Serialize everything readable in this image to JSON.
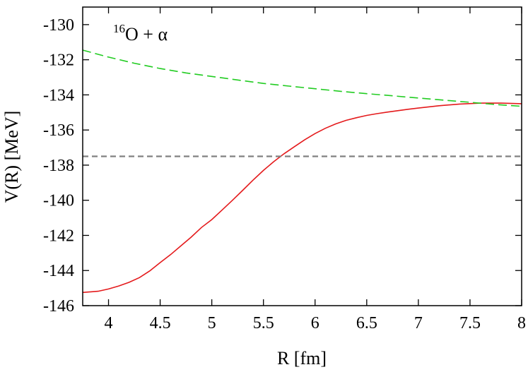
{
  "chart_data": {
    "type": "line",
    "title": "",
    "xlabel": "R [fm]",
    "ylabel": "V(R) [MeV]",
    "xlim": [
      3.75,
      8
    ],
    "ylim": [
      -146,
      -129
    ],
    "x_ticks": [
      4,
      4.5,
      5,
      5.5,
      6,
      6.5,
      7,
      7.5,
      8
    ],
    "x_tick_labels": [
      "4",
      "4.5",
      "5",
      "5.5",
      "6",
      "6.5",
      "7",
      "7.5",
      "8"
    ],
    "y_ticks": [
      -146,
      -144,
      -142,
      -140,
      -138,
      -136,
      -134,
      -132,
      -130
    ],
    "y_tick_labels": [
      "-146",
      "-144",
      "-142",
      "-140",
      "-138",
      "-136",
      "-134",
      "-132",
      "-130"
    ],
    "grid": false,
    "legend": "none",
    "annotation": {
      "mass_number": "16",
      "text": "O + α"
    },
    "series": [
      {
        "color": "#e41a1c",
        "style": "solid",
        "x": [
          3.75,
          3.9,
          4.0,
          4.1,
          4.2,
          4.3,
          4.4,
          4.5,
          4.6,
          4.7,
          4.8,
          4.9,
          5.0,
          5.1,
          5.2,
          5.3,
          5.4,
          5.5,
          5.6,
          5.7,
          5.8,
          5.9,
          6.0,
          6.1,
          6.2,
          6.3,
          6.4,
          6.5,
          6.6,
          6.7,
          6.8,
          6.9,
          7.0,
          7.2,
          7.4,
          7.6,
          7.8,
          8.0
        ],
        "y": [
          -145.25,
          -145.18,
          -145.05,
          -144.88,
          -144.67,
          -144.4,
          -144.02,
          -143.55,
          -143.1,
          -142.6,
          -142.1,
          -141.55,
          -141.1,
          -140.55,
          -140.0,
          -139.43,
          -138.85,
          -138.3,
          -137.8,
          -137.35,
          -136.95,
          -136.55,
          -136.2,
          -135.9,
          -135.65,
          -135.45,
          -135.3,
          -135.17,
          -135.07,
          -134.98,
          -134.9,
          -134.82,
          -134.75,
          -134.62,
          -134.52,
          -134.47,
          -134.47,
          -134.5
        ]
      },
      {
        "color": "#22cc22",
        "style": "dashed",
        "x": [
          3.75,
          4.0,
          4.25,
          4.5,
          4.75,
          5.0,
          5.25,
          5.5,
          5.75,
          6.0,
          6.25,
          6.5,
          6.75,
          7.0,
          7.25,
          7.5,
          7.75,
          8.0
        ],
        "y": [
          -131.45,
          -131.85,
          -132.2,
          -132.5,
          -132.75,
          -132.95,
          -133.15,
          -133.35,
          -133.5,
          -133.65,
          -133.8,
          -133.93,
          -134.05,
          -134.18,
          -134.3,
          -134.42,
          -134.55,
          -134.65
        ]
      },
      {
        "color": "#808080",
        "style": "dashed",
        "x": [
          3.75,
          8.0
        ],
        "y": [
          -137.5,
          -137.5
        ]
      }
    ]
  }
}
